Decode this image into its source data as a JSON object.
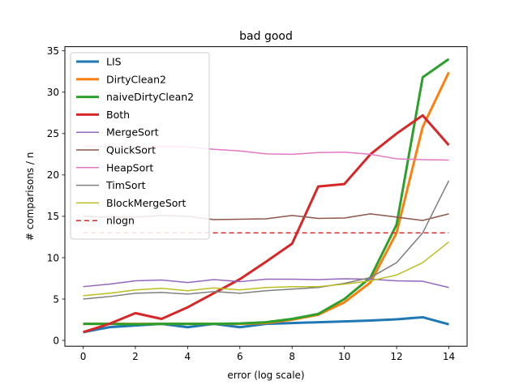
{
  "chart_data": {
    "type": "line",
    "title": "bad good",
    "xlabel": "error (log scale)",
    "ylabel": "# comparisons / n",
    "xlim": [
      -0.7,
      14.7
    ],
    "ylim": [
      -0.7,
      35.5
    ],
    "xticks": [
      0,
      2,
      4,
      6,
      8,
      10,
      12,
      14
    ],
    "yticks": [
      0,
      5,
      10,
      15,
      20,
      25,
      30,
      35
    ],
    "grid": false,
    "legend_position": "upper-left",
    "x": [
      0,
      1,
      2,
      3,
      4,
      5,
      6,
      7,
      8,
      9,
      10,
      11,
      12,
      13,
      14
    ],
    "series": [
      {
        "name": "LIS",
        "color": "#1f77b4",
        "width": 3,
        "dash": "",
        "values": [
          1.0,
          1.6,
          1.8,
          2.0,
          1.6,
          2.0,
          1.6,
          2.0,
          2.1,
          2.2,
          2.3,
          2.4,
          2.55,
          2.8,
          1.95
        ]
      },
      {
        "name": "DirtyClean2",
        "color": "#ff7f0e",
        "width": 3,
        "dash": "",
        "values": [
          2.0,
          2.0,
          2.0,
          2.0,
          2.0,
          2.0,
          2.0,
          2.1,
          2.5,
          3.1,
          4.6,
          7.0,
          13.0,
          25.8,
          32.4
        ]
      },
      {
        "name": "naiveDirtyClean2",
        "color": "#2ca02c",
        "width": 3,
        "dash": "",
        "values": [
          2.0,
          2.0,
          1.95,
          2.0,
          2.0,
          2.0,
          2.05,
          2.2,
          2.6,
          3.2,
          5.0,
          7.6,
          14.0,
          31.8,
          34.0
        ]
      },
      {
        "name": "Both",
        "color": "#d62728",
        "width": 3,
        "dash": "",
        "values": [
          1.0,
          2.0,
          3.3,
          2.6,
          4.0,
          5.7,
          7.4,
          9.5,
          11.7,
          18.6,
          18.9,
          22.5,
          25.0,
          27.2,
          23.6
        ]
      },
      {
        "name": "MergeSort",
        "color": "#9467bd",
        "width": 1.5,
        "dash": "",
        "values": [
          6.5,
          6.8,
          7.2,
          7.3,
          7.0,
          7.35,
          7.1,
          7.4,
          7.4,
          7.35,
          7.45,
          7.4,
          7.2,
          7.15,
          6.4
        ]
      },
      {
        "name": "QuickSort",
        "color": "#8c564b",
        "width": 1.5,
        "dash": "",
        "values": [
          15.0,
          14.9,
          14.9,
          15.1,
          15.0,
          14.6,
          14.65,
          14.7,
          15.1,
          14.75,
          14.8,
          15.3,
          14.9,
          14.5,
          15.3
        ]
      },
      {
        "name": "HeapSort",
        "color": "#e377c2",
        "width": 1.5,
        "dash": "",
        "values": [
          23.5,
          23.4,
          23.4,
          23.4,
          23.4,
          23.1,
          22.9,
          22.55,
          22.5,
          22.7,
          22.75,
          22.5,
          21.95,
          21.85,
          21.8
        ]
      },
      {
        "name": "TimSort",
        "color": "#7f7f7f",
        "width": 1.5,
        "dash": "",
        "values": [
          5.0,
          5.3,
          5.7,
          5.8,
          5.6,
          5.9,
          5.7,
          6.0,
          6.2,
          6.4,
          6.9,
          7.6,
          9.4,
          13.0,
          19.3
        ]
      },
      {
        "name": "BlockMergeSort",
        "color": "#bcbd22",
        "width": 1.5,
        "dash": "",
        "values": [
          5.4,
          5.7,
          6.1,
          6.3,
          6.0,
          6.35,
          6.1,
          6.4,
          6.5,
          6.5,
          6.8,
          7.2,
          7.9,
          9.4,
          11.9
        ]
      },
      {
        "name": "nlogn",
        "color": "#d62728",
        "width": 1.5,
        "dash": "6,4",
        "values": [
          13.0,
          13.0,
          13.0,
          13.0,
          13.0,
          13.0,
          13.0,
          13.0,
          13.0,
          13.0,
          13.0,
          13.0,
          13.0,
          13.0,
          13.0
        ]
      }
    ]
  }
}
